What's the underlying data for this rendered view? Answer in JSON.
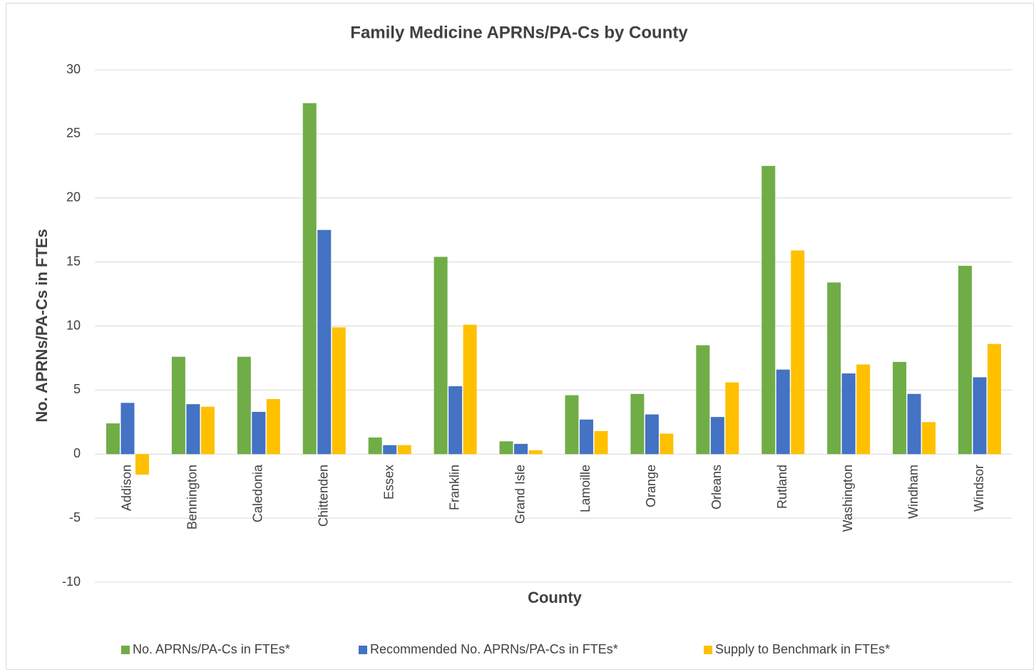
{
  "chart_data": {
    "type": "bar",
    "title": "Family Medicine APRNs/PA-Cs by County",
    "x_label": "County",
    "y_label": "No. APRNs/PA-Cs in FTEs",
    "categories": [
      "Addison",
      "Bennington",
      "Caledonia",
      "Chittenden",
      "Essex",
      "Franklin",
      "Grand Isle",
      "Lamoille",
      "Orange",
      "Orleans",
      "Rutland",
      "Washington",
      "Windham",
      "Windsor"
    ],
    "series": [
      {
        "name": "No. APRNs/PA-Cs in FTEs*",
        "color": "#70ad47",
        "values": [
          2.4,
          7.6,
          7.6,
          27.4,
          1.3,
          15.4,
          1.0,
          4.6,
          4.7,
          8.5,
          22.5,
          13.4,
          7.2,
          14.7
        ]
      },
      {
        "name": "Recommended No. APRNs/PA-Cs in FTEs*",
        "color": "#4472c4",
        "values": [
          4.0,
          3.9,
          3.3,
          17.5,
          0.7,
          5.3,
          0.8,
          2.7,
          3.1,
          2.9,
          6.6,
          6.3,
          4.7,
          6.0
        ]
      },
      {
        "name": "Supply to Benchmark in FTEs*",
        "color": "#ffc000",
        "values": [
          -1.6,
          3.7,
          4.3,
          9.9,
          0.7,
          10.1,
          0.3,
          1.8,
          1.6,
          5.6,
          15.9,
          7.0,
          2.5,
          8.6
        ]
      }
    ],
    "ylim": [
      -10,
      30
    ],
    "yticks": [
      -10,
      -5,
      0,
      5,
      10,
      15,
      20,
      25,
      30
    ],
    "grid": true,
    "legend": "bottom"
  }
}
